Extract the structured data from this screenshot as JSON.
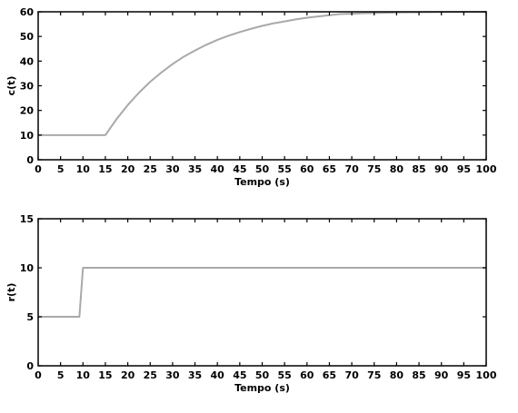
{
  "chart_data": [
    {
      "type": "line",
      "xlabel": "Tempo (s)",
      "ylabel": "c(t)",
      "xlim": [
        0,
        100
      ],
      "ylim": [
        0,
        60
      ],
      "xticks": [
        0,
        5,
        10,
        15,
        20,
        25,
        30,
        35,
        40,
        45,
        50,
        55,
        60,
        65,
        70,
        75,
        80,
        85,
        90,
        95,
        100
      ],
      "yticks": [
        0,
        10,
        20,
        30,
        40,
        50,
        60
      ],
      "grid": false,
      "line_color": "#a9a9a9",
      "series": [
        {
          "x": [
            0,
            15,
            17.5,
            20,
            22.5,
            25,
            27.5,
            30,
            32.5,
            35,
            37.5,
            40,
            42.5,
            45,
            47.5,
            50,
            52.5,
            55,
            57.5,
            60,
            62.5,
            65,
            67.5,
            70,
            72.5,
            75,
            77.5,
            80,
            82.5,
            85,
            87.5,
            90,
            92.5,
            95,
            97.5,
            100
          ],
          "y": [
            10,
            10,
            16.5,
            22.2,
            27.2,
            31.6,
            35.4,
            38.8,
            41.8,
            44.3,
            46.6,
            48.6,
            50.3,
            51.8,
            53.1,
            54.3,
            55.3,
            56.1,
            56.9,
            57.6,
            58.1,
            58.6,
            59.1,
            59.2,
            59.4,
            59.5,
            59.6,
            59.7,
            59.75,
            59.8,
            59.85,
            59.9,
            59.92,
            59.95,
            59.97,
            60
          ]
        }
      ]
    },
    {
      "type": "line",
      "xlabel": "Tempo (s)",
      "ylabel": "r(t)",
      "xlim": [
        0,
        100
      ],
      "ylim": [
        0,
        15
      ],
      "xticks": [
        0,
        5,
        10,
        15,
        20,
        25,
        30,
        35,
        40,
        45,
        50,
        55,
        60,
        65,
        70,
        75,
        80,
        85,
        90,
        95,
        100
      ],
      "yticks": [
        0,
        5,
        10,
        15
      ],
      "grid": false,
      "line_color": "#a9a9a9",
      "series": [
        {
          "x": [
            0,
            9.2,
            10,
            100
          ],
          "y": [
            5,
            5,
            10,
            10
          ]
        }
      ]
    }
  ]
}
